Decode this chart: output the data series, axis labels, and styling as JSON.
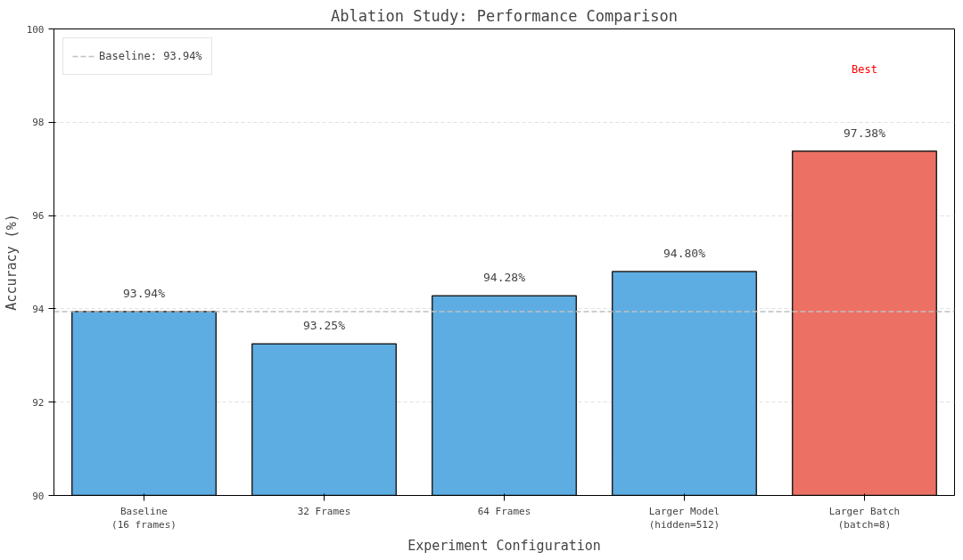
{
  "chart_data": {
    "type": "bar",
    "title": "Ablation Study: Performance Comparison",
    "xlabel": "Experiment Configuration",
    "ylabel": "Accuracy (%)",
    "categories": [
      "Baseline\n(16 frames)",
      "32 Frames",
      "64 Frames",
      "Larger Model\n(hidden=512)",
      "Larger Batch\n(batch=8)"
    ],
    "values": [
      93.94,
      93.25,
      94.28,
      94.8,
      97.38
    ],
    "colors": [
      "#5dade2",
      "#5dade2",
      "#5dade2",
      "#5dade2",
      "#ec7063"
    ],
    "value_labels": [
      "93.94%",
      "93.25%",
      "94.28%",
      "94.80%",
      "97.38%"
    ],
    "ylim": [
      90,
      100
    ],
    "yticks": [
      90,
      92,
      94,
      96,
      98,
      100
    ],
    "grid": "y",
    "legend": "top left",
    "ref_lines": [
      {
        "axis": "y",
        "value": 93.94,
        "label": "Baseline: 93.94%",
        "color": "#c0c0c0",
        "line_style": "dashed"
      }
    ],
    "annotations": [
      "Best"
    ]
  }
}
